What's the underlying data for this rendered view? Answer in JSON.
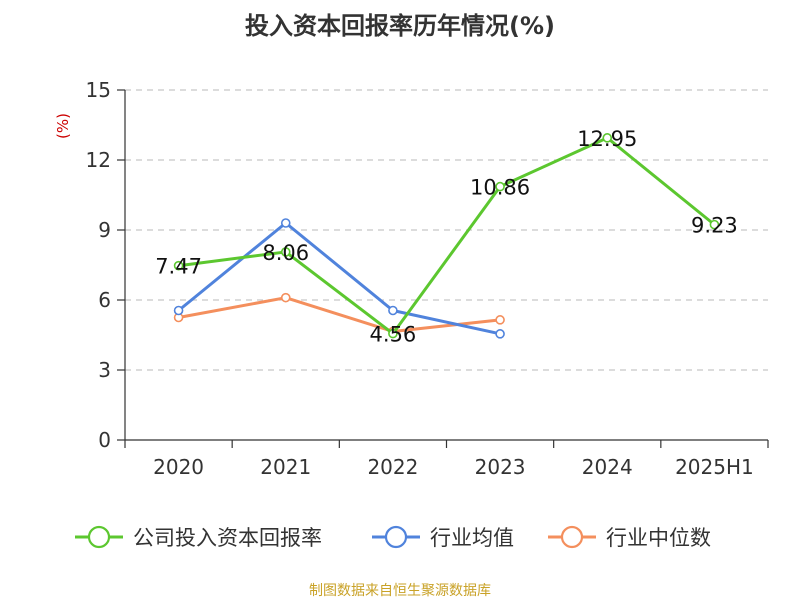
{
  "chart_data": {
    "type": "line",
    "title": "投入资本回报率历年情况(%)",
    "ylabel": "(%)",
    "xlabel": "",
    "categories": [
      "2020",
      "2021",
      "2022",
      "2023",
      "2024",
      "2025H1"
    ],
    "ylim": [
      0,
      15
    ],
    "yticks": [
      0,
      3,
      6,
      9,
      12,
      15
    ],
    "grid": true,
    "legend_position": "bottom",
    "series": [
      {
        "name": "公司投入资本回报率",
        "color": "#5cc72f",
        "values": [
          7.47,
          8.06,
          4.56,
          10.86,
          12.95,
          9.23
        ],
        "data_labels": [
          "7.47",
          "8.06",
          "4.56",
          "10.86",
          "12.95",
          "9.23"
        ]
      },
      {
        "name": "行业均值",
        "color": "#5083dc",
        "values": [
          5.55,
          9.3,
          5.55,
          4.55,
          null,
          null
        ]
      },
      {
        "name": "行业中位数",
        "color": "#f48f5d",
        "values": [
          5.25,
          6.1,
          4.65,
          5.15,
          null,
          null
        ]
      }
    ],
    "source": "制图数据来自恒生聚源数据库"
  }
}
